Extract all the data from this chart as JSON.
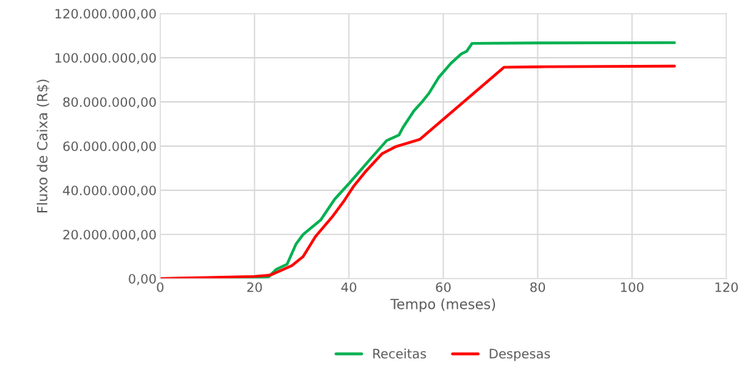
{
  "chart_data": {
    "type": "line",
    "xlabel": "Tempo (meses)",
    "ylabel": "Fluxo de Caixa (R$)",
    "xlim": [
      0,
      120
    ],
    "xticks": [
      0,
      20,
      40,
      60,
      80,
      100,
      120
    ],
    "ylim": [
      0,
      120000000
    ],
    "yticks": [
      {
        "value": 0,
        "label": "0,00"
      },
      {
        "value": 20000000,
        "label": "20.000.000,00"
      },
      {
        "value": 40000000,
        "label": "40.000.000,00"
      },
      {
        "value": 60000000,
        "label": "60.000.000,00"
      },
      {
        "value": 80000000,
        "label": "80.000.000,00"
      },
      {
        "value": 100000000,
        "label": "100.000.000,00"
      },
      {
        "value": 120000000,
        "label": "120.000.000,00"
      }
    ],
    "grid": true,
    "legend": "bottom",
    "marker": "none",
    "line_style": "solid",
    "series": [
      {
        "name": "Receitas",
        "color": "#00b050",
        "x": [
          0,
          20,
          23,
          24.6,
          26.9,
          28.8,
          30.3,
          34,
          37,
          40,
          44.5,
          48,
          50.6,
          51.5,
          53.8,
          55.5,
          57,
          59,
          61.6,
          63.8,
          65,
          66.1,
          80,
          109
        ],
        "values": [
          0,
          300000,
          800000,
          4200000,
          6500000,
          15700000,
          20000000,
          26500000,
          36000000,
          43000000,
          54000000,
          62500000,
          65000000,
          68600000,
          76000000,
          80000000,
          84000000,
          91000000,
          97400000,
          101700000,
          103000000,
          106500000,
          106700000,
          106800000
        ]
      },
      {
        "name": "Despesas",
        "color": "#ff0000",
        "x": [
          0,
          10,
          20,
          23,
          23.8,
          27.9,
          30.3,
          32.9,
          36.4,
          39,
          41,
          43.5,
          47,
          50,
          55,
          72.9,
          80,
          109
        ],
        "values": [
          0,
          500000,
          1000000,
          1500000,
          2000000,
          5900000,
          10000000,
          19000000,
          27800000,
          35300000,
          41800000,
          48400000,
          56500000,
          59800000,
          63000000,
          95700000,
          95900000,
          96200000
        ]
      }
    ]
  }
}
